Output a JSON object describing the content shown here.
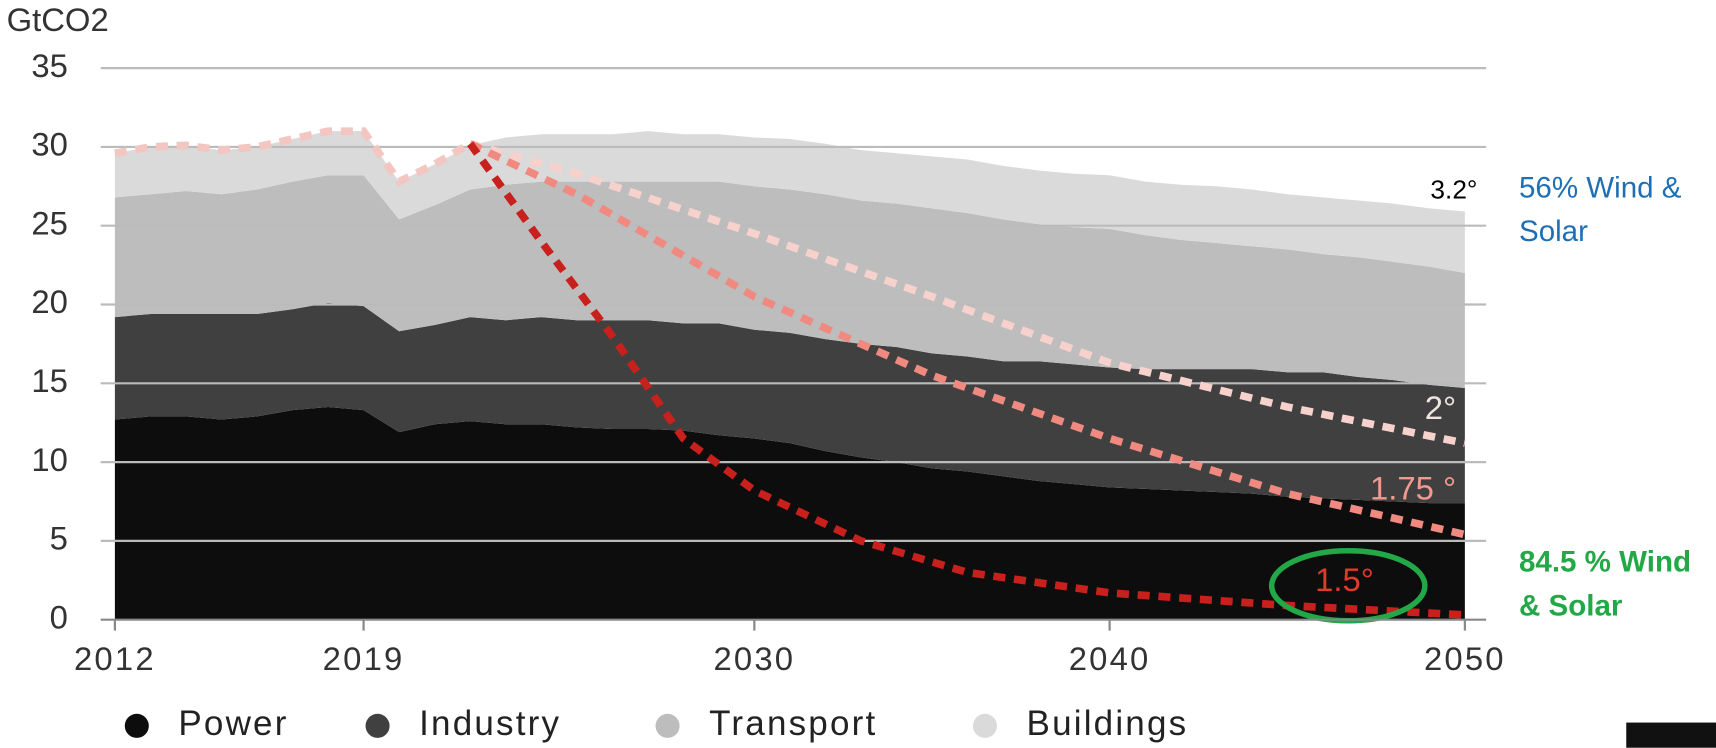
{
  "chart_data": {
    "type": "stacked_area",
    "y_label": "GtCO2",
    "x": [
      2012,
      2013,
      2014,
      2015,
      2016,
      2017,
      2018,
      2019,
      2020,
      2021,
      2022,
      2023,
      2024,
      2025,
      2026,
      2027,
      2028,
      2029,
      2030,
      2031,
      2032,
      2033,
      2034,
      2035,
      2036,
      2037,
      2038,
      2039,
      2040,
      2041,
      2042,
      2043,
      2044,
      2045,
      2046,
      2047,
      2048,
      2049,
      2050
    ],
    "xlim": [
      2011.6,
      2050.6
    ],
    "xticks": [
      2012,
      2019,
      2030,
      2040,
      2050
    ],
    "ylim": [
      0,
      35
    ],
    "yticks": [
      0,
      5,
      10,
      15,
      20,
      25,
      30,
      35
    ],
    "grid": true,
    "series": [
      {
        "name": "Power",
        "color": "#0d0d0d",
        "values": [
          12.7,
          12.9,
          12.9,
          12.7,
          12.9,
          13.3,
          13.5,
          13.3,
          11.9,
          12.4,
          12.6,
          12.4,
          12.4,
          12.2,
          12.1,
          12.1,
          12.0,
          11.7,
          11.5,
          11.2,
          10.7,
          10.3,
          10.0,
          9.6,
          9.4,
          9.1,
          8.8,
          8.6,
          8.4,
          8.3,
          8.2,
          8.1,
          8.0,
          7.8,
          7.7,
          7.6,
          7.5,
          7.4,
          7.4
        ]
      },
      {
        "name": "Industry",
        "color": "#404040",
        "values": [
          6.5,
          6.5,
          6.5,
          6.7,
          6.5,
          6.4,
          6.6,
          6.6,
          6.4,
          6.3,
          6.6,
          6.6,
          6.8,
          6.8,
          6.9,
          6.9,
          6.8,
          7.1,
          6.9,
          7.0,
          7.1,
          7.2,
          7.3,
          7.3,
          7.3,
          7.3,
          7.6,
          7.6,
          7.6,
          7.6,
          7.7,
          7.8,
          7.9,
          7.9,
          8.0,
          7.8,
          7.7,
          7.5,
          7.3
        ]
      },
      {
        "name": "Transport",
        "color": "#bdbdbd",
        "values": [
          7.6,
          7.6,
          7.8,
          7.6,
          7.9,
          8.1,
          8.1,
          8.3,
          7.1,
          7.6,
          8.1,
          8.6,
          8.6,
          8.8,
          8.8,
          8.8,
          9.0,
          9.0,
          9.1,
          9.1,
          9.2,
          9.1,
          9.1,
          9.2,
          9.1,
          9.0,
          8.7,
          8.7,
          8.8,
          8.5,
          8.2,
          8.0,
          7.8,
          7.8,
          7.5,
          7.6,
          7.5,
          7.5,
          7.3
        ]
      },
      {
        "name": "Buildings",
        "color": "#dadada",
        "values": [
          2.8,
          3.0,
          2.9,
          2.8,
          2.7,
          2.7,
          2.8,
          2.8,
          2.4,
          2.6,
          2.8,
          3.0,
          3.0,
          3.0,
          3.0,
          3.2,
          3.0,
          3.0,
          3.1,
          3.2,
          3.2,
          3.2,
          3.2,
          3.3,
          3.4,
          3.4,
          3.4,
          3.4,
          3.4,
          3.4,
          3.5,
          3.6,
          3.6,
          3.5,
          3.6,
          3.6,
          3.7,
          3.7,
          3.9
        ]
      }
    ],
    "lines": [
      {
        "color": "#f3c6c1",
        "x": [
          2012,
          2013,
          2014,
          2015,
          2016,
          2017,
          2018,
          2019,
          2020,
          2021,
          2022
        ],
        "values": [
          29.6,
          30.0,
          30.1,
          29.8,
          30.0,
          30.5,
          31.0,
          31.0,
          27.8,
          28.9,
          30.2
        ]
      },
      {
        "label": "2°",
        "color": "#f7d2cd",
        "x": [
          2022,
          2025,
          2030,
          2035,
          2040,
          2045,
          2050
        ],
        "values": [
          30.2,
          28.3,
          24.5,
          20.5,
          16.3,
          13.5,
          11.2
        ]
      },
      {
        "label": "1.75 °",
        "color": "#f08a80",
        "x": [
          2022,
          2025,
          2030,
          2035,
          2040,
          2045,
          2050
        ],
        "values": [
          30.2,
          27.0,
          20.5,
          15.5,
          11.5,
          8.0,
          5.4
        ]
      },
      {
        "label": "1.5°",
        "color": "#c8201c",
        "x": [
          2022,
          2024,
          2026,
          2028,
          2030,
          2033,
          2036,
          2040,
          2045,
          2050
        ],
        "values": [
          30.2,
          24.0,
          18.0,
          11.5,
          8.2,
          5.0,
          3.0,
          1.7,
          0.9,
          0.3
        ]
      }
    ],
    "annotations": [
      {
        "text": [
          "3.2°"
        ],
        "color": "#000000"
      },
      {
        "text": [
          "56% Wind &",
          "Solar"
        ],
        "color": "#1f6fb5"
      },
      {
        "text": [
          "84.5 % Wind",
          "& Solar"
        ],
        "color": "#22a846"
      }
    ]
  }
}
